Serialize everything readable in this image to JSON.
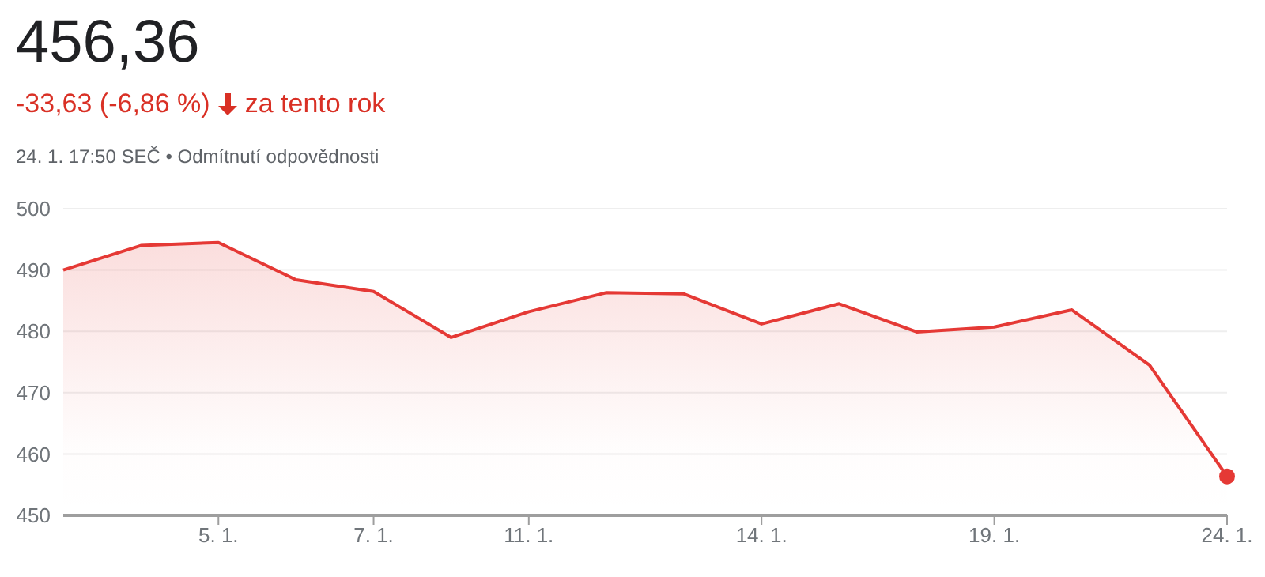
{
  "chart_data": {
    "type": "area",
    "title": "456,36",
    "subtitle": "-33,63 (-6,86 %)",
    "annotations": [
      "za tento rok",
      "24. 1. 17:50 SEČ • Odmítnutí odpovědnosti"
    ],
    "categories": [
      null,
      null,
      "5. 1.",
      null,
      "7. 1.",
      null,
      "11. 1.",
      null,
      null,
      "14. 1.",
      null,
      null,
      "19. 1.",
      null,
      null,
      "24. 1."
    ],
    "series": [
      {
        "color": "#e53935",
        "values": [
          490,
          494,
          494.5,
          488.4,
          486.5,
          479,
          483.2,
          486.3,
          486.1,
          481.2,
          484.5,
          479.9,
          480.7,
          483.5,
          474.5,
          456.36
        ]
      },
      {
        "type": "scatter",
        "marker": "circle",
        "color": "#e53935",
        "values": [
          null,
          null,
          null,
          null,
          null,
          null,
          null,
          null,
          null,
          null,
          null,
          null,
          null,
          null,
          null,
          456.36
        ]
      }
    ],
    "ylim": [
      450,
      500
    ],
    "yticks": [
      450,
      460,
      470,
      480,
      490,
      500
    ],
    "grid": "y",
    "legend": false,
    "marker": "none"
  }
}
